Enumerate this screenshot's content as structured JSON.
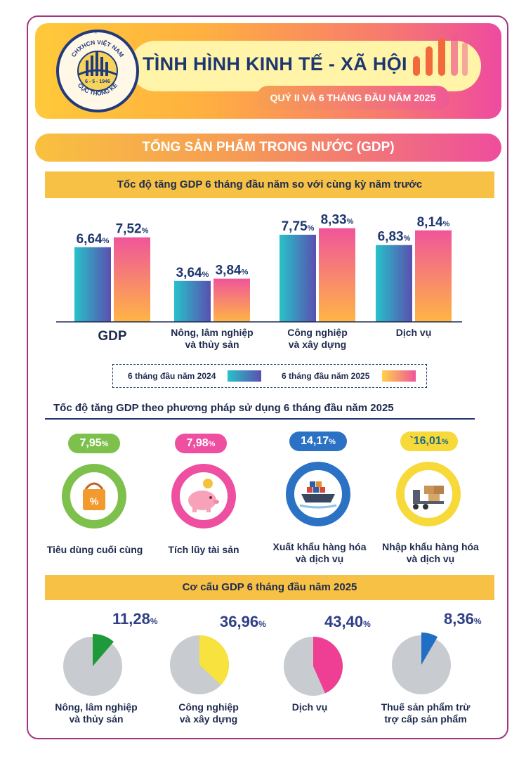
{
  "header": {
    "logo": {
      "top_text": "CHXHCN VIỆT NAM",
      "date": "6 - 5 - 1946",
      "bottom_text": "CỤC THỐNG KÊ"
    },
    "title": "TÌNH HÌNH KINH TẾ - XÃ HỘI",
    "subtitle": "QUÝ II VÀ 6 THÁNG ĐẦU NĂM 2025"
  },
  "section_title": "TỔNG SẢN PHẨM TRONG NƯỚC (GDP)",
  "colors": {
    "series_2024": [
      "#27c2c9",
      "#5a4fb0"
    ],
    "series_2025": [
      "#ffd24a",
      "#f0559a"
    ],
    "navy": "#2e3f86",
    "gold": "#f6c144",
    "pie_grey": "#c8cbcf"
  },
  "chart_data": [
    {
      "type": "bar",
      "title": "Tốc độ tăng GDP 6 tháng đầu năm so với cùng kỳ năm trước",
      "categories": [
        "GDP",
        "Nông, lâm nghiệp\nvà thủy sản",
        "Công nghiệp\nvà xây dựng",
        "Dịch vụ"
      ],
      "series": [
        {
          "name": "6 tháng đầu năm 2024",
          "values": [
            6.64,
            3.64,
            7.75,
            6.83
          ]
        },
        {
          "name": "6 tháng đầu năm 2025",
          "values": [
            7.52,
            3.84,
            8.33,
            8.14
          ]
        }
      ],
      "value_labels_2024": [
        "6,64",
        "3,64",
        "7,75",
        "6,83"
      ],
      "value_labels_2025": [
        "7,52",
        "3,84",
        "8,33",
        "8,14"
      ],
      "unit": "%",
      "ylim": [
        0,
        10
      ],
      "legend": "bottom"
    },
    {
      "type": "table",
      "title": "Tốc độ tăng GDP theo phương pháp sử dụng 6 tháng đầu năm 2025",
      "items": [
        {
          "label": "Tiêu dùng cuối cùng",
          "value": 7.95,
          "value_text": "7,95",
          "unit": "%",
          "icon": "shopping-bag-icon",
          "color": "#7dc04b"
        },
        {
          "label": "Tích lũy tài sản",
          "value": 7.98,
          "value_text": "7,98",
          "unit": "%",
          "icon": "piggy-bank-icon",
          "color": "#ee4fa0"
        },
        {
          "label": "Xuất khẩu hàng hóa\nvà dịch vụ",
          "value": 14.17,
          "value_text": "14,17",
          "unit": "%",
          "icon": "cargo-ship-icon",
          "color": "#2b72c4"
        },
        {
          "label": "Nhập khẩu hàng hóa\nvà dịch vụ",
          "value": 16.01,
          "value_text": "`16,01",
          "unit": "%",
          "icon": "forklift-boxes-icon",
          "color": "#f7d93a"
        }
      ]
    },
    {
      "type": "pie",
      "title": "Cơ cấu GDP 6 tháng đầu năm 2025",
      "unit": "%",
      "slices": [
        {
          "label": "Nông, lâm nghiệp\nvà thủy sản",
          "value": 11.28,
          "value_text": "11,28",
          "color": "#1f9a3a"
        },
        {
          "label": "Công nghiệp\nvà xây dựng",
          "value": 36.96,
          "value_text": "36,96",
          "color": "#f7e23e"
        },
        {
          "label": "Dịch vụ",
          "value": 43.4,
          "value_text": "43,40",
          "color": "#ee3f95"
        },
        {
          "label": "Thuế sản phẩm trừ\ntrợ cấp sản phẩm",
          "value": 8.36,
          "value_text": "8,36",
          "color": "#1f6fc4"
        }
      ]
    }
  ]
}
